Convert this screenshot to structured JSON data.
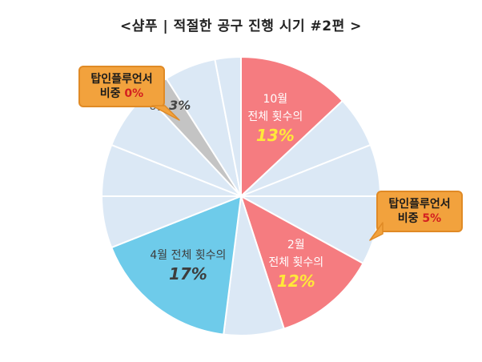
{
  "title": "<샴푸 | 적절한 공구 진행 시기 #2편 >",
  "colors": {
    "default": "#dbe8f5",
    "highlight_red": "#f57c80",
    "highlight_blue": "#6ecbea",
    "highlight_gray": "#c4c4c4",
    "callout": "#f2a23d",
    "accent_text": "#ffe83a",
    "callout_pct": "#d42020",
    "dark_text": "#3d3d3d"
  },
  "chart_data": {
    "type": "pie",
    "slices": [
      {
        "value": 13,
        "color": "highlight_red",
        "label_line1": "10월",
        "label_line2": "전체 횟수의",
        "label_big": "13%"
      },
      {
        "value": 6,
        "color": "default"
      },
      {
        "value": 6,
        "color": "default"
      },
      {
        "value": 8,
        "color": "default"
      },
      {
        "value": 12,
        "color": "highlight_red",
        "label_line1": "2월",
        "label_line2": "전체 횟수의",
        "label_big": "12%"
      },
      {
        "value": 7,
        "color": "default"
      },
      {
        "value": 17,
        "color": "highlight_blue",
        "label_line1": "4월 전체 횟수의",
        "label_big": "17%"
      },
      {
        "value": 6,
        "color": "default"
      },
      {
        "value": 6,
        "color": "default"
      },
      {
        "value": 7,
        "color": "default"
      },
      {
        "value": 3,
        "color": "highlight_gray",
        "label_line1": "8월",
        "label_big": "3%"
      },
      {
        "value": 6,
        "color": "default"
      },
      {
        "value": 3,
        "color": "default"
      }
    ]
  },
  "callouts": [
    {
      "line1": "탑인플루언서",
      "line2_prefix": "비중 ",
      "pct": "0%"
    },
    {
      "line1": "탑인플루언서",
      "line2_prefix": "비중 ",
      "pct": "5%"
    }
  ]
}
